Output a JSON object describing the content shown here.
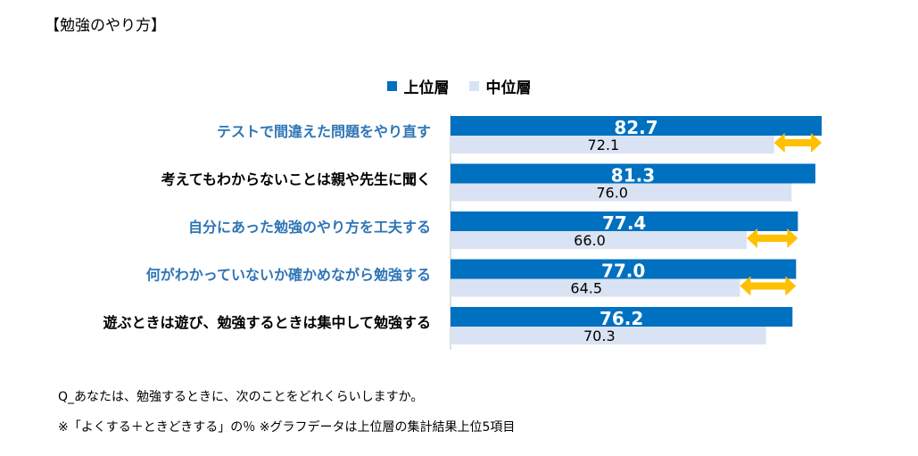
{
  "page": {
    "title": "【勉強のやり方】",
    "footnote_question": "Q_あなたは、勉強するときに、次のことをどれくらいしますか。",
    "footnote_note": "※「よくする＋ときどきする」の％ ※グラフデータは上位層の集計結果上位5項目"
  },
  "colors": {
    "upper": "#0070C0",
    "middle": "#DAE3F3",
    "highlight_label": "#2E75B6",
    "normal_label": "#000000",
    "arrow": "#FFC000"
  },
  "chart_data": {
    "type": "bar",
    "orientation": "horizontal",
    "categories": [
      "テストで間違えた問題をやり直す",
      "考えてもわからないことは親や先生に聞く",
      "自分にあった勉強のやり方を工夫する",
      "何がわかっていないか確かめながら勉強する",
      "遊ぶときは遊び、勉強するときは集中して勉強する"
    ],
    "highlighted_categories": [
      true,
      false,
      true,
      true,
      false
    ],
    "series": [
      {
        "name": "上位層",
        "values": [
          82.7,
          81.3,
          77.4,
          77.0,
          76.2
        ],
        "labels": [
          "82.7",
          "81.3",
          "77.4",
          "77.0",
          "76.2"
        ]
      },
      {
        "name": "中位層",
        "values": [
          72.1,
          76.0,
          66.0,
          64.5,
          70.3
        ],
        "labels": [
          "72.1",
          "76.0",
          "66.0",
          "64.5",
          "70.3"
        ]
      }
    ],
    "gap_arrows": [
      true,
      false,
      true,
      true,
      false
    ],
    "xlim": [
      0,
      82.7
    ],
    "legend_position": "top",
    "grid": false
  }
}
